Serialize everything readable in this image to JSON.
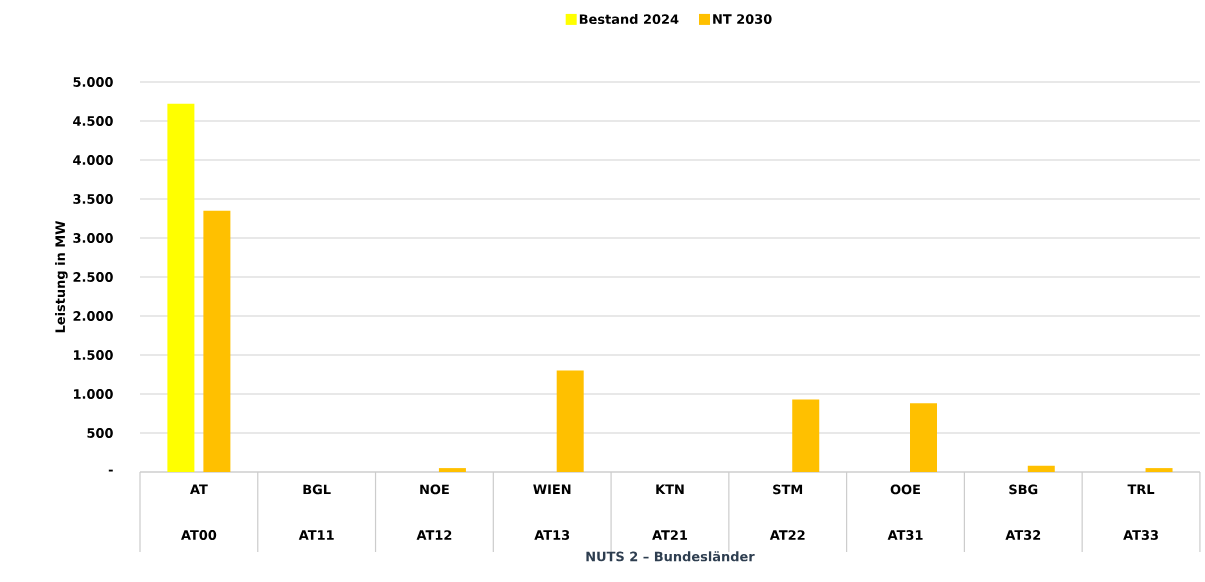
{
  "chart_data": {
    "type": "bar",
    "xlabel": "NUTS 2 – Bundesländer",
    "ylabel": "Leistung in MW",
    "categories": [
      "AT",
      "BGL",
      "NOE",
      "WIEN",
      "KTN",
      "STM",
      "OOE",
      "SBG",
      "TRL"
    ],
    "series": [
      {
        "name": "Bestand 2024",
        "color": "#ffff00",
        "values": [
          4720,
          0,
          0,
          0,
          0,
          0,
          0,
          0,
          0
        ]
      },
      {
        "name": "NT 2030",
        "color": "#ffc000",
        "values": [
          3350,
          0,
          50,
          1300,
          0,
          930,
          880,
          80,
          50
        ]
      }
    ],
    "ylim": [
      0,
      5000
    ],
    "yticks": [
      {
        "value": 0,
        "label": "-"
      },
      {
        "value": 500,
        "label": "500"
      },
      {
        "value": 1000,
        "label": "1.000"
      },
      {
        "value": 1500,
        "label": "1.500"
      },
      {
        "value": 2000,
        "label": "2.000"
      },
      {
        "value": 2500,
        "label": "2.500"
      },
      {
        "value": 3000,
        "label": "3.000"
      },
      {
        "value": 3500,
        "label": "3.500"
      },
      {
        "value": 4000,
        "label": "4.000"
      },
      {
        "value": 4500,
        "label": "4.500"
      },
      {
        "value": 5000,
        "label": "5.000"
      }
    ],
    "annotations": [
      "AT00",
      "AT11",
      "AT12",
      "AT13",
      "AT21",
      "AT22",
      "AT31",
      "AT32",
      "AT33"
    ],
    "grid": "y",
    "legend": "top"
  }
}
